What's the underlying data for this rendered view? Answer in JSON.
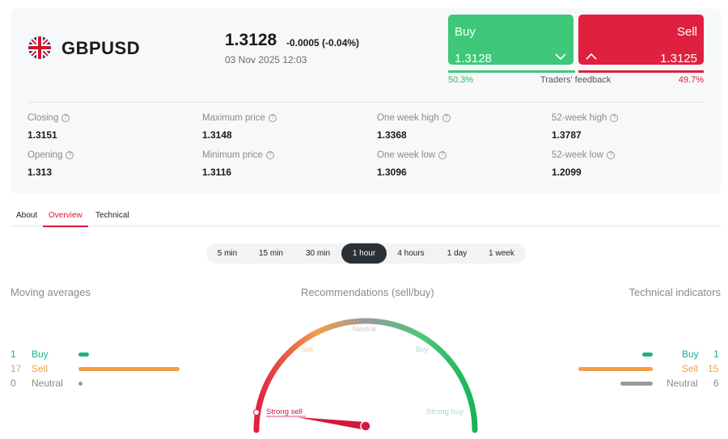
{
  "instrument": {
    "symbol": "GBPUSD",
    "price": "1.3128",
    "change": "-0.0005 (-0.04%)",
    "datetime": "03 Nov 2025 12:03"
  },
  "trade": {
    "buy_label": "Buy",
    "buy_price": "1.3128",
    "sell_label": "Sell",
    "sell_price": "1.3125"
  },
  "feedback": {
    "buy_pct": "50.3%",
    "label": "Traders' feedback",
    "sell_pct": "49.7%"
  },
  "stats": [
    {
      "label": "Closing",
      "value": "1.3151"
    },
    {
      "label": "Maximum price",
      "value": "1.3148"
    },
    {
      "label": "One week high",
      "value": "1.3368"
    },
    {
      "label": "52-week high",
      "value": "1.3787"
    },
    {
      "label": "Opening",
      "value": "1.313"
    },
    {
      "label": "Minimum price",
      "value": "1.3116"
    },
    {
      "label": "One week low",
      "value": "1.3096"
    },
    {
      "label": "52-week low",
      "value": "1.2099"
    }
  ],
  "tabs": [
    {
      "label": "About"
    },
    {
      "label": "Overview",
      "active": true
    },
    {
      "label": "Technical"
    }
  ],
  "periods": [
    {
      "label": "5 min"
    },
    {
      "label": "15 min"
    },
    {
      "label": "30 min"
    },
    {
      "label": "1 hour",
      "active": true
    },
    {
      "label": "4 hours"
    },
    {
      "label": "1 day"
    },
    {
      "label": "1 week"
    }
  ],
  "sections": {
    "moving_averages": "Moving averages",
    "recommendations": "Recommendations (sell/buy)",
    "technical_indicators": "Technical indicators"
  },
  "moving_averages": {
    "buy": {
      "count": "1",
      "label": "Buy"
    },
    "sell": {
      "count": "17",
      "label": "Sell"
    },
    "neutral": {
      "count": "0",
      "label": "Neutral"
    }
  },
  "technical_indicators": {
    "buy": {
      "count": "1",
      "label": "Buy"
    },
    "sell": {
      "count": "15",
      "label": "Sell"
    },
    "neutral": {
      "count": "6",
      "label": "Neutral"
    }
  },
  "gauge": {
    "labels": {
      "strong_sell": "Strong sell",
      "sell": "Sell",
      "neutral": "Neutral",
      "buy": "Buy",
      "strong_buy": "Strong buy"
    },
    "active": "Strong sell"
  },
  "colors": {
    "buy": "#3fc87a",
    "sell": "#e0203f",
    "ma_buy": "#19b38a",
    "ma_sell": "#f0a04b",
    "neutral": "#9a9a9a",
    "accent": "#d3183a"
  }
}
